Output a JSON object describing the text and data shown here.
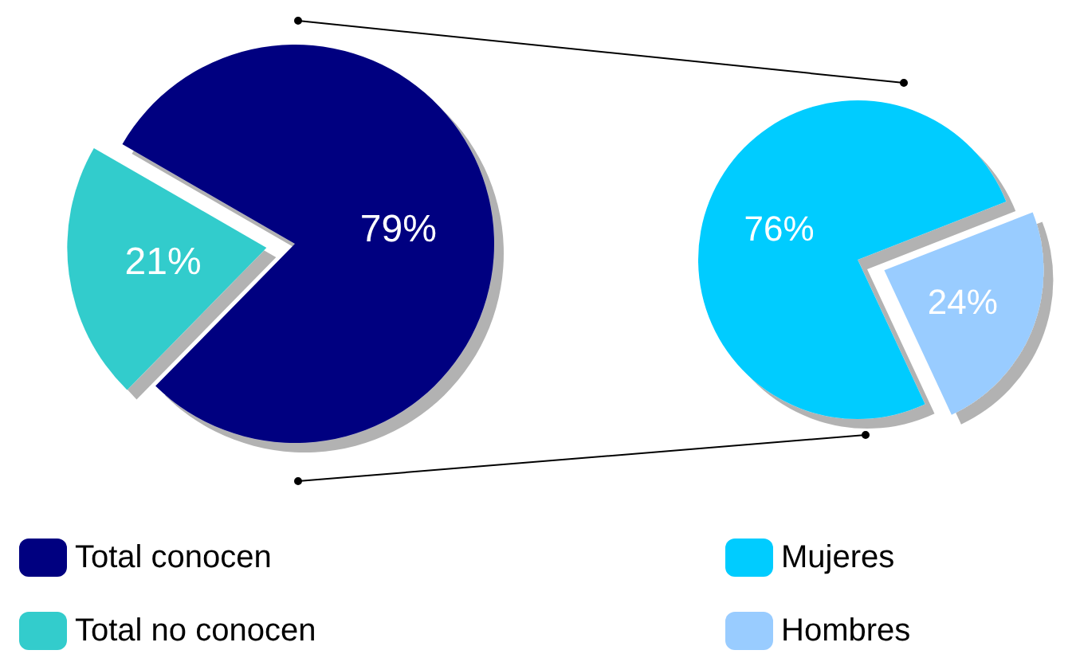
{
  "chart_data": [
    {
      "type": "pie",
      "categories": [
        "Total conocen",
        "Total no conocen"
      ],
      "values": [
        79,
        21
      ],
      "colors": [
        "#000080",
        "#33cccc"
      ],
      "value_labels": [
        "79%",
        "21%"
      ],
      "legend": "bottom"
    },
    {
      "type": "pie",
      "categories": [
        "Mujeres",
        "Hombres"
      ],
      "values": [
        76,
        24
      ],
      "colors": [
        "#00ccff",
        "#99ccff"
      ],
      "value_labels": [
        "76%",
        "24%"
      ],
      "legend": "bottom"
    }
  ]
}
